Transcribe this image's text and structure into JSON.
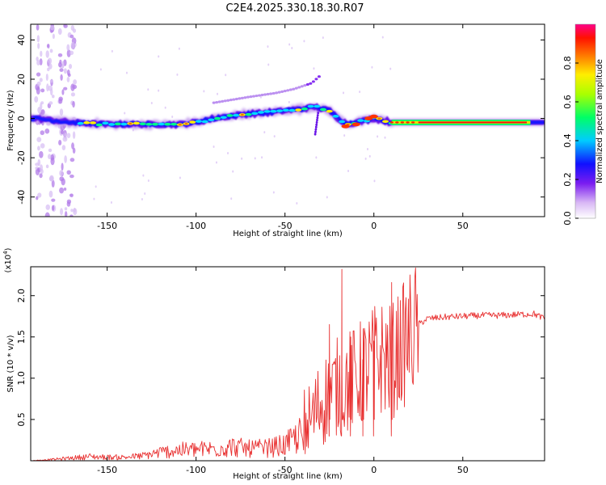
{
  "page_title": "C2E4.2025.330.18.30.R07",
  "chart_data": [
    {
      "type": "heatmap",
      "title": "C2E4.2025.330.18.30.R07",
      "xlabel": "Height of straight line (km)",
      "ylabel": "Frequency (Hz)",
      "xlim": [
        -193,
        96
      ],
      "ylim": [
        -50,
        48
      ],
      "xticks": [
        -150,
        -100,
        -50,
        0,
        50
      ],
      "yticks": [
        -40,
        -20,
        0,
        20,
        40
      ],
      "colorbar": {
        "label": "Normalized spectral amplitude",
        "range": [
          0,
          1
        ],
        "ticks": [
          "0.0",
          "0.2",
          "0.4",
          "0.6",
          "0.8"
        ]
      },
      "ridge": {
        "x": [
          -190,
          -170,
          -150,
          -130,
          -110,
          -100,
          -90,
          -75,
          -60,
          -50,
          -40,
          -33,
          -30,
          -25,
          -20,
          -15,
          -10,
          -5,
          0,
          10,
          30,
          50,
          70,
          96
        ],
        "y": [
          0,
          -2,
          -3,
          -3,
          -3,
          -2,
          0,
          2,
          3,
          4,
          5,
          6,
          5,
          4,
          0,
          -3,
          -2,
          -1,
          0,
          -2,
          -2,
          -2,
          -2,
          -2
        ]
      },
      "harmonic_ridge": {
        "x": [
          -90,
          -70,
          -55,
          -45,
          -35,
          -30
        ],
        "y": [
          8,
          11,
          13,
          15,
          18,
          22
        ]
      }
    },
    {
      "type": "line",
      "xlabel": "Height of straight line (km)",
      "ylabel": "SNR (10 * v/v)",
      "scale_label": "(x10",
      "scale_exponent": "4",
      "scale_close": ")",
      "xlim": [
        -193,
        96
      ],
      "ylim": [
        0,
        2.35
      ],
      "xticks": [
        -150,
        -100,
        -50,
        0,
        50
      ],
      "yticks": [
        0.5,
        1.0,
        1.5,
        2.0
      ],
      "ytick_labels": [
        "0.5",
        "1.0",
        "1.5",
        "2.0"
      ],
      "series_color": "#e83030",
      "series": [
        {
          "name": "SNR",
          "x": [
            -193,
            -180,
            -170,
            -160,
            -150,
            -140,
            -130,
            -120,
            -110,
            -100,
            -90,
            -80,
            -70,
            -60,
            -50,
            -45,
            -40,
            -35,
            -30,
            -25,
            -20,
            -15,
            -10,
            -5,
            0,
            5,
            10,
            15,
            20,
            25,
            30,
            40,
            50,
            60,
            70,
            80,
            90,
            96
          ],
          "y": [
            0.0,
            0.02,
            0.04,
            0.06,
            0.05,
            0.05,
            0.07,
            0.12,
            0.15,
            0.16,
            0.17,
            0.2,
            0.17,
            0.18,
            0.22,
            0.3,
            0.4,
            0.5,
            0.7,
            0.8,
            0.9,
            0.95,
            1.0,
            1.1,
            1.2,
            1.25,
            1.2,
            1.35,
            1.5,
            1.65,
            1.72,
            1.74,
            1.75,
            1.76,
            1.76,
            1.77,
            1.78,
            1.72
          ]
        }
      ],
      "peaks": [
        {
          "x": -18,
          "y": 2.32
        },
        {
          "x": -25,
          "y": 1.65
        },
        {
          "x": -13,
          "y": 1.5
        },
        {
          "x": -6,
          "y": 1.6
        },
        {
          "x": 0,
          "y": 1.45
        },
        {
          "x": 10,
          "y": 2.16
        }
      ]
    }
  ]
}
